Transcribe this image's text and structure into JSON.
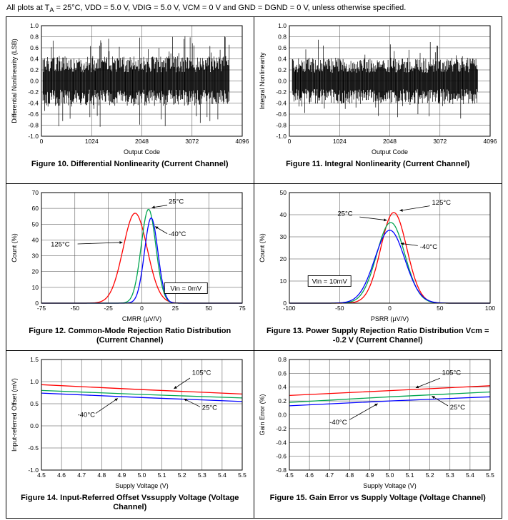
{
  "header": {
    "pre": "All plots at T",
    "sub": "A",
    "post": " = 25°C, VDD = 5.0 V, VDIG = 5.0 V, VCM = 0 V and GND = DGND = 0 V, unless otherwise specified."
  },
  "colors": {
    "temp_125c_and_105c": "#ff0000",
    "temp_25c": "#00a550",
    "temp_minus40c": "#0000ff",
    "trace": "#000000"
  },
  "chart_data": [
    {
      "type": "line",
      "subtype": "noise",
      "title": "Figure 10. Differential Nonlinearity (Current Channel)",
      "xlabel": "Output Code",
      "ylabel": "Differential Nonlinearity (LSB)",
      "xlim": [
        0,
        4096
      ],
      "ylim": [
        -1.0,
        1.0
      ],
      "xticks": [
        0,
        1024,
        2048,
        3072,
        4096
      ],
      "yticks": [
        -1.0,
        -0.8,
        -0.6,
        -0.4,
        -0.2,
        0.0,
        0.2,
        0.4,
        0.6,
        0.8,
        1.0
      ],
      "xdec": 0,
      "ydec": 1,
      "grid": true,
      "noise": {
        "name": "DNL",
        "color": "#000000",
        "x_start": 30,
        "x_end": 3830,
        "typical_amplitude": 0.45,
        "peak_amplitude": 0.85
      }
    },
    {
      "type": "line",
      "subtype": "noise",
      "title": "Figure 11. Integral Nonlinearity (Current Channel)",
      "xlabel": "Output Code",
      "ylabel": "Integral Nonlinearity",
      "xlim": [
        0,
        4096
      ],
      "ylim": [
        -1.0,
        1.0
      ],
      "xticks": [
        0,
        1024,
        2048,
        3072,
        4096
      ],
      "yticks": [
        -1.0,
        -0.8,
        -0.6,
        -0.4,
        -0.2,
        0.0,
        0.2,
        0.4,
        0.6,
        0.8,
        1.0
      ],
      "xdec": 0,
      "ydec": 1,
      "grid": true,
      "noise": {
        "name": "INL",
        "color": "#000000",
        "x_start": 60,
        "x_end": 3840,
        "typical_amplitude": 0.42,
        "peak_amplitude": 0.75
      }
    },
    {
      "type": "line",
      "subtype": "gaussian",
      "title": "Figure 12. Common-Mode Rejection Ratio Distribution (Current Channel)",
      "xlabel": "CMRR (µV/V)",
      "ylabel": "Count (%)",
      "xlim": [
        -75,
        75
      ],
      "ylim": [
        0,
        70
      ],
      "xticks": [
        -75,
        -50,
        -25,
        0,
        25,
        50,
        75
      ],
      "yticks": [
        0,
        10,
        20,
        30,
        40,
        50,
        60,
        70
      ],
      "xdec": 0,
      "ydec": 0,
      "grid": true,
      "series": [
        {
          "name": "125°C",
          "color": "#ff0000",
          "mean": -5,
          "sigma": 9,
          "peak": 57
        },
        {
          "name": "25°C",
          "color": "#00a550",
          "mean": 5,
          "sigma": 5.5,
          "peak": 59.5
        },
        {
          "name": "-40°C",
          "color": "#0000ff",
          "mean": 7,
          "sigma": 5,
          "peak": 54
        }
      ],
      "annotations": [
        {
          "text": "25°C",
          "tx": 20,
          "ty": 63,
          "x1": 19,
          "y1": 62,
          "x2": 7.5,
          "y2": 60.5,
          "anchor": "start"
        },
        {
          "text": "-40°C",
          "tx": 20,
          "ty": 42.5,
          "x1": 19,
          "y1": 44,
          "x2": 10,
          "y2": 48.5,
          "anchor": "start"
        },
        {
          "text": "125°C",
          "tx": -68,
          "ty": 36,
          "x1": -48,
          "y1": 37.5,
          "x2": -14.5,
          "y2": 38.5,
          "anchor": "start"
        }
      ],
      "box_annotations": [
        {
          "text": "Vin = 0mV",
          "x": 33,
          "y": 9.5
        }
      ]
    },
    {
      "type": "line",
      "subtype": "gaussian",
      "title": "Figure 13. Power Supply Rejection Ratio Distribution Vcm = -0.2 V (Current Channel)",
      "xlabel": "PSRR (µV/V)",
      "ylabel": "Count (%)",
      "xlim": [
        -100,
        100
      ],
      "ylim": [
        0,
        50
      ],
      "xticks": [
        -100,
        -50,
        0,
        50,
        100
      ],
      "yticks": [
        0,
        10,
        20,
        30,
        40,
        50
      ],
      "xdec": 0,
      "ydec": 0,
      "grid": true,
      "series": [
        {
          "name": "125°C",
          "color": "#ff0000",
          "mean": 4,
          "sigma": 13,
          "peak": 41
        },
        {
          "name": "25°C",
          "color": "#00a550",
          "mean": 1,
          "sigma": 14,
          "peak": 36.5
        },
        {
          "name": "-40°C",
          "color": "#0000ff",
          "mean": 0,
          "sigma": 15,
          "peak": 33
        }
      ],
      "annotations": [
        {
          "text": "125°C",
          "tx": 42,
          "ty": 44.5,
          "x1": 40,
          "y1": 44,
          "x2": 10,
          "y2": 41.8,
          "anchor": "start"
        },
        {
          "text": "25°C",
          "tx": -52,
          "ty": 39.5,
          "x1": -30,
          "y1": 39,
          "x2": -3,
          "y2": 37.5,
          "anchor": "start"
        },
        {
          "text": "-40°C",
          "tx": 30,
          "ty": 24.5,
          "x1": 28,
          "y1": 26,
          "x2": 11,
          "y2": 27,
          "anchor": "start"
        }
      ],
      "box_annotations": [
        {
          "text": "Vin = 10mV",
          "x": -60,
          "y": 10
        }
      ]
    },
    {
      "type": "line",
      "title": "Figure 14. Input-Referred Offset Vssupply Voltage (Voltage Channel)",
      "xlabel": "Supply Voltage (V)",
      "ylabel": "Input-referred Offset (mV)",
      "xlim": [
        4.5,
        5.5
      ],
      "ylim": [
        -1.0,
        1.5
      ],
      "xticks": [
        4.5,
        4.6,
        4.7,
        4.8,
        4.9,
        5.0,
        5.1,
        5.2,
        5.3,
        5.4,
        5.5
      ],
      "yticks": [
        -1.0,
        -0.5,
        0.0,
        0.5,
        1.0,
        1.5
      ],
      "xdec": 1,
      "ydec": 1,
      "grid": true,
      "series": [
        {
          "name": "105°C",
          "color": "#ff0000",
          "points": [
            [
              4.5,
              0.93
            ],
            [
              5.0,
              0.82
            ],
            [
              5.5,
              0.72
            ]
          ]
        },
        {
          "name": "25°C",
          "color": "#00a550",
          "points": [
            [
              4.5,
              0.8
            ],
            [
              5.0,
              0.71
            ],
            [
              5.5,
              0.63
            ]
          ]
        },
        {
          "name": "-40°C",
          "color": "#0000ff",
          "points": [
            [
              4.5,
              0.74
            ],
            [
              5.0,
              0.64
            ],
            [
              5.5,
              0.55
            ]
          ]
        }
      ],
      "annotations": [
        {
          "text": "105°C",
          "tx": 5.25,
          "ty": 1.15,
          "x1": 5.24,
          "y1": 1.08,
          "x2": 5.16,
          "y2": 0.84,
          "anchor": "start"
        },
        {
          "text": "25°C",
          "tx": 5.3,
          "ty": 0.36,
          "x1": 5.29,
          "y1": 0.43,
          "x2": 5.21,
          "y2": 0.61,
          "anchor": "start"
        },
        {
          "text": "-40°C",
          "tx": 4.68,
          "ty": 0.2,
          "x1": 4.77,
          "y1": 0.28,
          "x2": 4.88,
          "y2": 0.62,
          "anchor": "start"
        }
      ]
    },
    {
      "type": "line",
      "title": "Figure 15. Gain Error vs Supply Voltage (Voltage Channel)",
      "xlabel": "Supply Voltage (V)",
      "ylabel": "Gain Error (%)",
      "xlim": [
        4.5,
        5.5
      ],
      "ylim": [
        -0.8,
        0.8
      ],
      "xticks": [
        4.5,
        4.6,
        4.7,
        4.8,
        4.9,
        5.0,
        5.1,
        5.2,
        5.3,
        5.4,
        5.5
      ],
      "yticks": [
        -0.8,
        -0.6,
        -0.4,
        -0.2,
        0.0,
        0.2,
        0.4,
        0.6,
        0.8
      ],
      "xdec": 1,
      "ydec": 1,
      "grid": true,
      "series": [
        {
          "name": "105°C",
          "color": "#ff0000",
          "points": [
            [
              4.5,
              0.28
            ],
            [
              5.0,
              0.35
            ],
            [
              5.5,
              0.42
            ]
          ]
        },
        {
          "name": "25°C",
          "color": "#00a550",
          "points": [
            [
              4.5,
              0.18
            ],
            [
              5.0,
              0.26
            ],
            [
              5.5,
              0.33
            ]
          ]
        },
        {
          "name": "-40°C",
          "color": "#0000ff",
          "points": [
            [
              4.5,
              0.13
            ],
            [
              5.0,
              0.2
            ],
            [
              5.5,
              0.26
            ]
          ]
        }
      ],
      "annotations": [
        {
          "text": "105°C",
          "tx": 5.26,
          "ty": 0.58,
          "x1": 5.25,
          "y1": 0.53,
          "x2": 5.13,
          "y2": 0.39,
          "anchor": "start"
        },
        {
          "text": "25°C",
          "tx": 5.3,
          "ty": 0.08,
          "x1": 5.29,
          "y1": 0.13,
          "x2": 5.21,
          "y2": 0.27,
          "anchor": "start"
        },
        {
          "text": "-40°C",
          "tx": 4.7,
          "ty": -0.14,
          "x1": 4.8,
          "y1": -0.07,
          "x2": 4.94,
          "y2": 0.16,
          "anchor": "start"
        }
      ]
    }
  ]
}
